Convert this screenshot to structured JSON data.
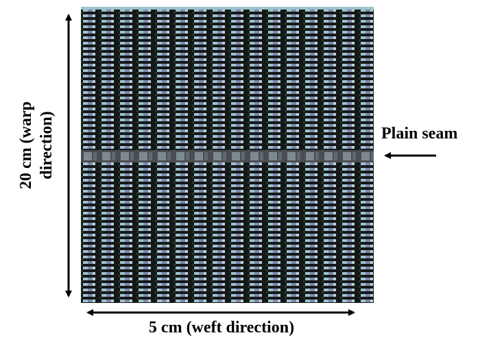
{
  "warp_label": {
    "line1": "20 cm (warp",
    "line2": "direction)"
  },
  "seam_label": "Plain seam",
  "weft_label": "5 cm (weft direction)"
}
